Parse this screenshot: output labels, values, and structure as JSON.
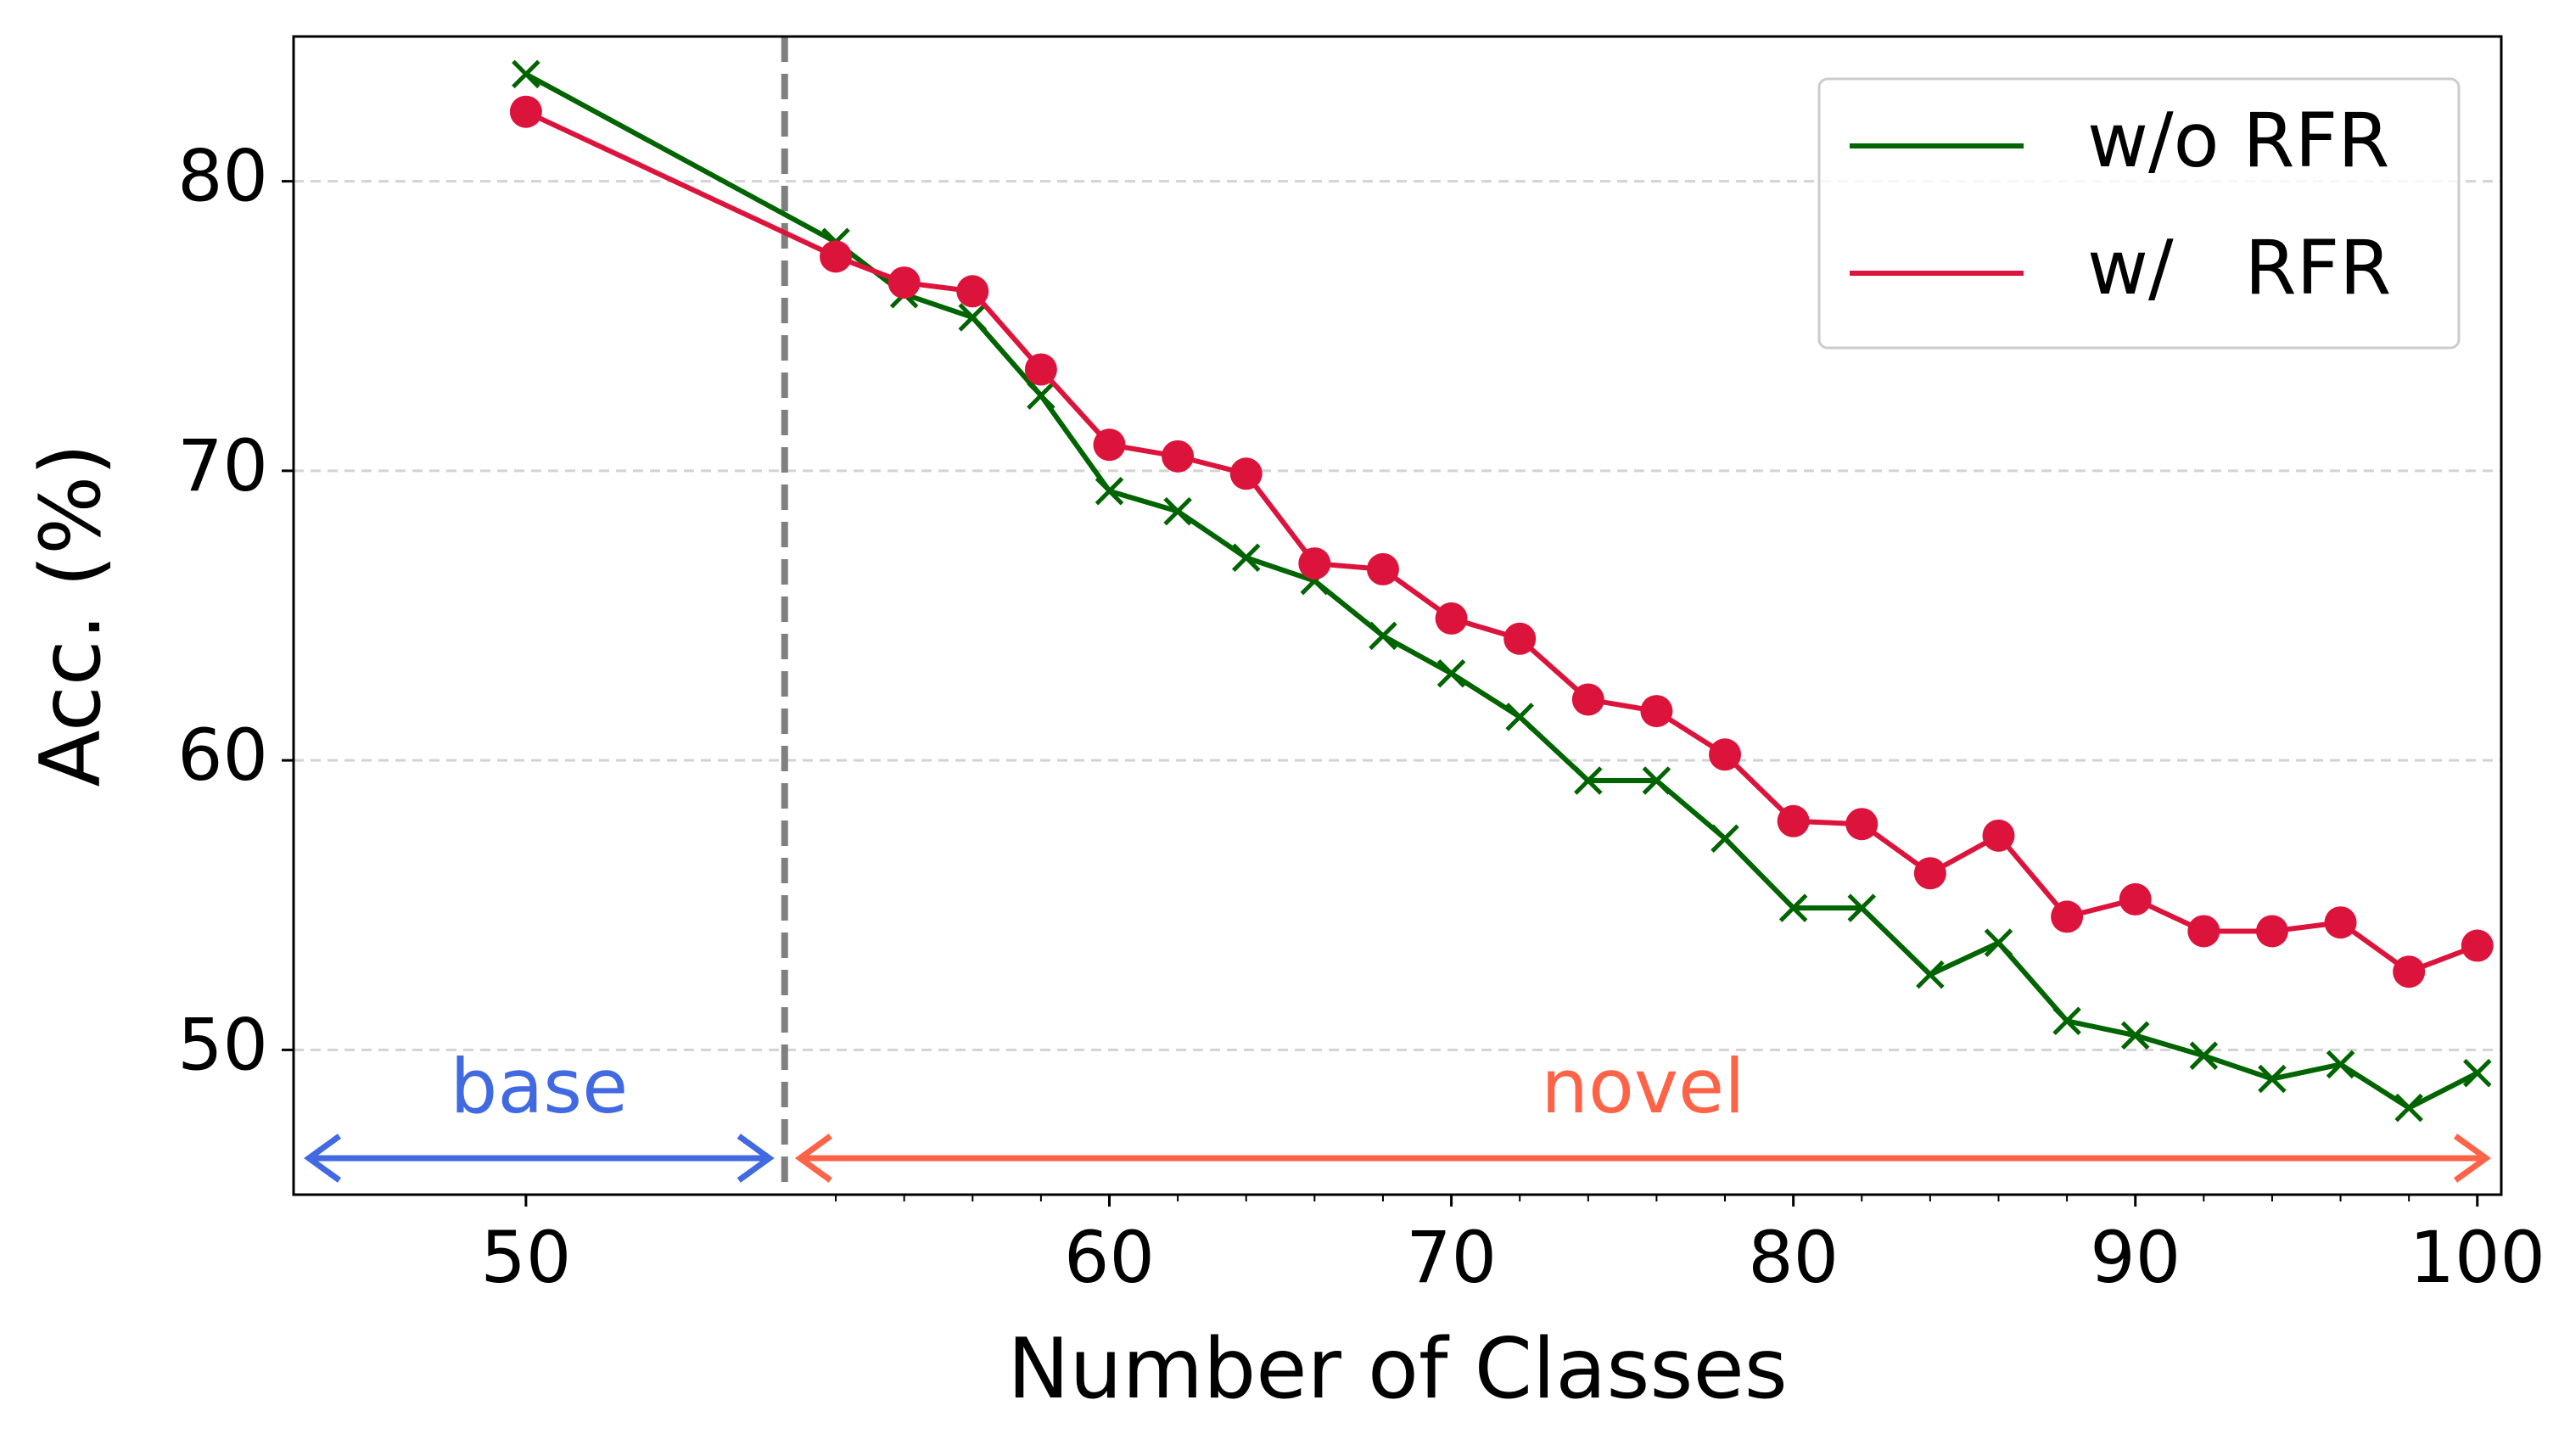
{
  "chart_data": {
    "type": "line",
    "xlabel": "Number of Classes",
    "ylabel": "Acc. (%)",
    "x": [
      50,
      52,
      54,
      56,
      58,
      60,
      62,
      64,
      66,
      68,
      70,
      72,
      74,
      76,
      78,
      80,
      82,
      84,
      86,
      88,
      90,
      92,
      94,
      96,
      98,
      100
    ],
    "series": [
      {
        "name": "w/o RFR",
        "color": "#006400",
        "marker": "x",
        "values": [
          83.7,
          77.9,
          76.1,
          75.3,
          72.6,
          69.3,
          68.6,
          67.0,
          66.2,
          64.3,
          63.0,
          61.5,
          59.3,
          59.3,
          57.3,
          54.9,
          54.9,
          52.6,
          53.7,
          51.0,
          50.5,
          49.8,
          49.0,
          49.5,
          48.0,
          49.2
        ]
      },
      {
        "name": "w/   RFR",
        "color": "#dc143c",
        "marker": "o",
        "values": [
          82.4,
          77.4,
          76.5,
          76.2,
          73.5,
          70.9,
          70.5,
          69.9,
          66.8,
          66.6,
          64.9,
          64.2,
          62.1,
          61.7,
          60.2,
          57.9,
          57.8,
          56.1,
          57.4,
          54.6,
          55.2,
          54.1,
          54.1,
          54.4,
          52.7,
          53.6
        ]
      }
    ],
    "xlim": [
      48.5,
      100.7
    ],
    "ylim": [
      45,
      85
    ],
    "xticks": [
      50,
      60,
      70,
      80,
      90,
      100
    ],
    "xminorticks": [
      52,
      54,
      56,
      58,
      62,
      64,
      66,
      68,
      72,
      74,
      76,
      78,
      82,
      84,
      86,
      88,
      92,
      94,
      96,
      98
    ],
    "yticks": [
      50,
      60,
      70,
      80
    ],
    "grid": true,
    "legend": "upper right",
    "divider_x": 51.67,
    "annotations": [
      {
        "text": "base",
        "color": "#4169e1"
      },
      {
        "text": "novel",
        "color": "#ff6347"
      }
    ]
  }
}
